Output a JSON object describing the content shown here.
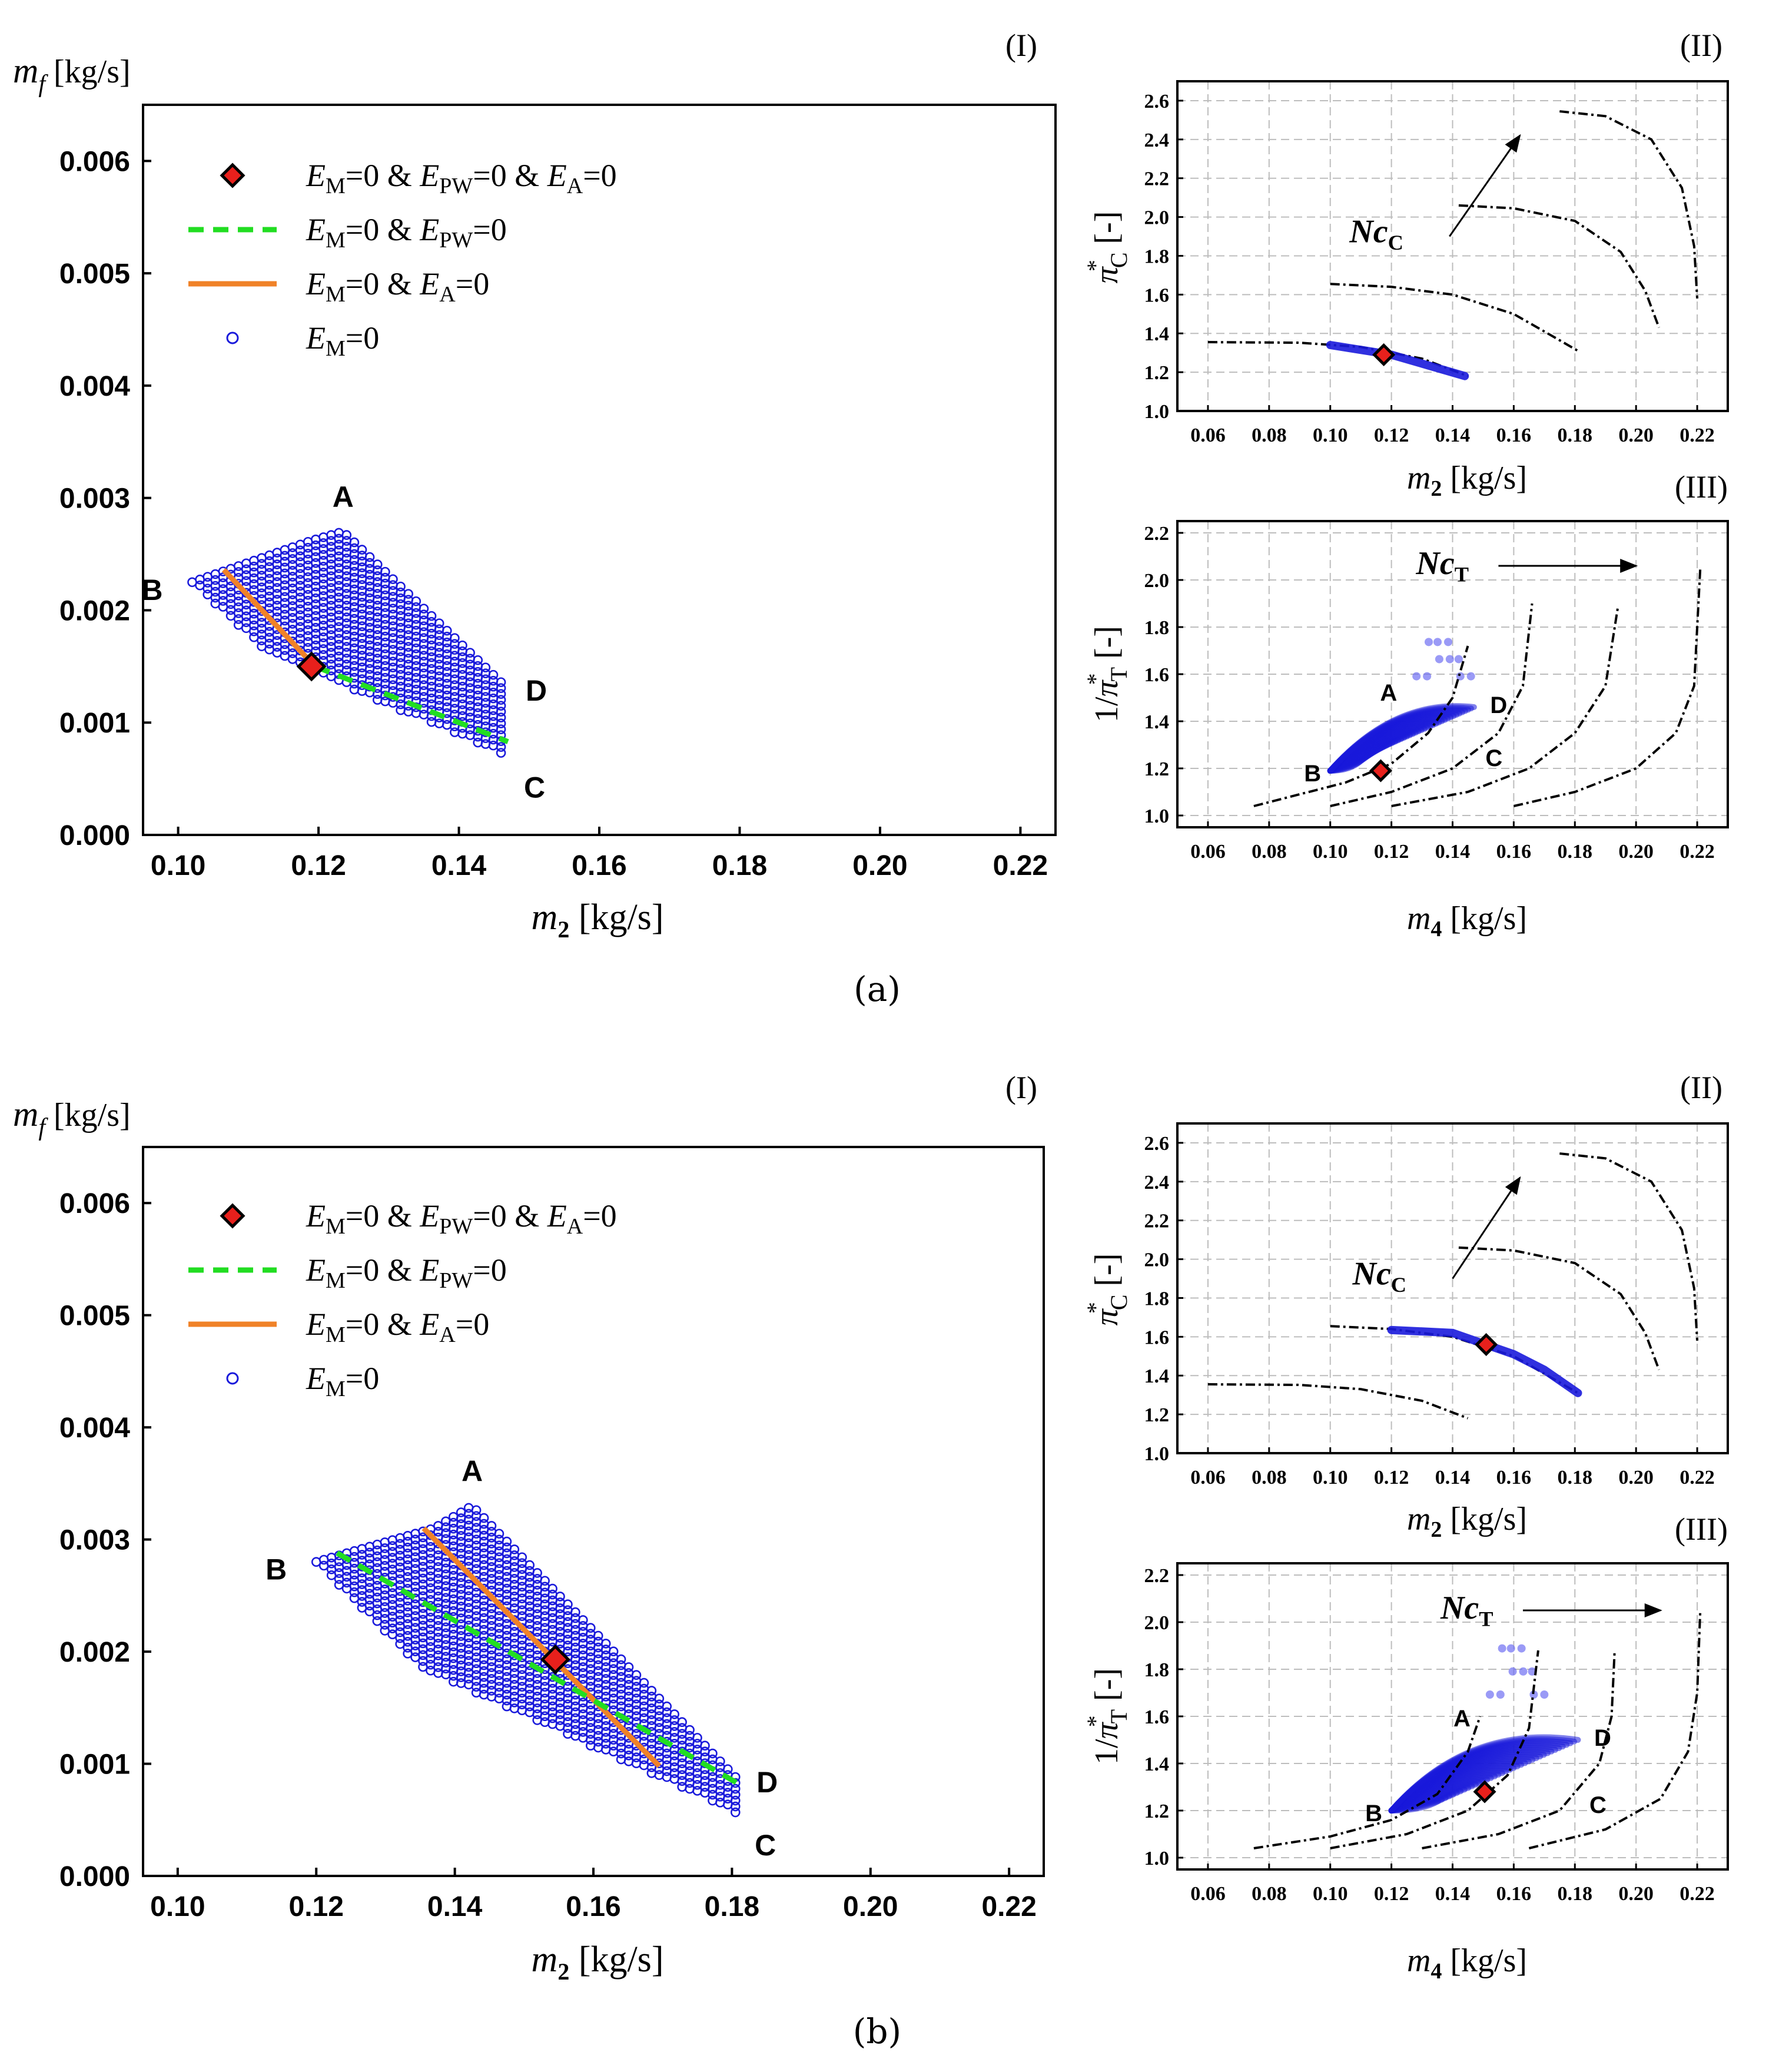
{
  "figure_labels": {
    "a": "(a)",
    "b": "(b)"
  },
  "panel_labels": {
    "I": "(I)",
    "II": "(II)",
    "III": "(III)"
  },
  "axis_labels": {
    "mf": "m_f [kg/s]",
    "m2": "m_2 [kg/s]",
    "m4": "m_4 [kg/s]",
    "piC": "π*_C [-]",
    "piT": "1/π*_T [-]"
  },
  "legend": [
    {
      "label": "E_M=0 & E_PW=0 & E_A=0",
      "marker": "diamond",
      "color": "#e8201c"
    },
    {
      "label": "E_M=0 & E_PW=0",
      "marker": "dash",
      "color": "#22dd22"
    },
    {
      "label": "E_M=0 & E_A=0",
      "marker": "line",
      "color": "#f08228"
    },
    {
      "label": "E_M=0",
      "marker": "circle",
      "color": "#1a1adb"
    }
  ],
  "annotations": {
    "NcC": "Nc_C",
    "NcT": "Nc_T"
  },
  "colors": {
    "blue": "#1a1adb",
    "green": "#22dd22",
    "orange": "#f08228",
    "red": "#e8201c",
    "light_blue": "#6f6ff2"
  },
  "chart_data": [
    {
      "id": "a-I",
      "type": "scatter",
      "title": "(I)",
      "xlabel": "m_2 [kg/s]",
      "ylabel": "m_f [kg/s]",
      "xlim": [
        0.095,
        0.225
      ],
      "ylim": [
        0,
        0.0065
      ],
      "xticks": [
        0.1,
        0.12,
        0.14,
        0.16,
        0.18,
        0.2,
        0.22
      ],
      "yticks": [
        0.0,
        0.001,
        0.002,
        0.003,
        0.004,
        0.005,
        0.006
      ],
      "region_ABCD": {
        "A": [
          0.1235,
          0.0027
        ],
        "B": [
          0.102,
          0.00225
        ],
        "C": [
          0.147,
          0.0007
        ],
        "D": [
          0.147,
          0.0013
        ],
        "A_left": [
          0.119,
          0.00262
        ]
      },
      "labels": {
        "A": "A",
        "B": "B",
        "C": "C",
        "D": "D"
      },
      "orange_line": [
        [
          0.1065,
          0.00236
        ],
        [
          0.1195,
          0.0015
        ]
      ],
      "green_line": [
        [
          0.1195,
          0.0015
        ],
        [
          0.147,
          0.00083
        ]
      ],
      "design_point": [
        0.119,
        0.0015
      ]
    },
    {
      "id": "b-I",
      "type": "scatter",
      "title": "(I)",
      "xlabel": "m_2 [kg/s]",
      "ylabel": "m_f [kg/s]",
      "xlim": [
        0.095,
        0.225
      ],
      "ylim": [
        0,
        0.0065
      ],
      "xticks": [
        0.1,
        0.12,
        0.14,
        0.16,
        0.18,
        0.2,
        0.22
      ],
      "yticks": [
        0.0,
        0.001,
        0.002,
        0.003,
        0.004,
        0.005,
        0.006
      ],
      "region_ABCD": {
        "A": [
          0.1425,
          0.0033
        ],
        "B": [
          0.12,
          0.0028
        ],
        "C": [
          0.181,
          0.00055
        ],
        "D": [
          0.181,
          0.00085
        ],
        "A_left": [
          0.137,
          0.0031
        ]
      },
      "labels": {
        "A": "A",
        "B": "B",
        "C": "C",
        "D": "D"
      },
      "orange_line": [
        [
          0.1355,
          0.0031
        ],
        [
          0.1695,
          0.00098
        ]
      ],
      "green_line": [
        [
          0.123,
          0.00288
        ],
        [
          0.181,
          0.00082
        ]
      ],
      "design_point": [
        0.1545,
        0.00193
      ]
    },
    {
      "id": "a-II",
      "type": "line",
      "title": "(II)",
      "xlabel": "m_2 [kg/s]",
      "ylabel": "π*_C [-]",
      "xlim": [
        0.05,
        0.23
      ],
      "ylim": [
        1.0,
        2.7
      ],
      "xticks": [
        0.06,
        0.08,
        0.1,
        0.12,
        0.14,
        0.16,
        0.18,
        0.2,
        0.22
      ],
      "yticks": [
        1.0,
        1.2,
        1.4,
        1.6,
        1.8,
        2.0,
        2.2,
        2.4,
        2.6
      ],
      "speed_lines": [
        [
          [
            0.06,
            1.355
          ],
          [
            0.09,
            1.352
          ],
          [
            0.11,
            1.33
          ],
          [
            0.13,
            1.27
          ],
          [
            0.145,
            1.18
          ]
        ],
        [
          [
            0.1,
            1.655
          ],
          [
            0.12,
            1.64
          ],
          [
            0.14,
            1.6
          ],
          [
            0.16,
            1.5
          ],
          [
            0.17,
            1.41
          ],
          [
            0.181,
            1.31
          ]
        ],
        [
          [
            0.142,
            2.06
          ],
          [
            0.16,
            2.045
          ],
          [
            0.18,
            1.98
          ],
          [
            0.195,
            1.82
          ],
          [
            0.203,
            1.62
          ],
          [
            0.2075,
            1.43
          ]
        ],
        [
          [
            0.175,
            2.545
          ],
          [
            0.19,
            2.52
          ],
          [
            0.205,
            2.4
          ],
          [
            0.215,
            2.15
          ],
          [
            0.219,
            1.85
          ],
          [
            0.22,
            1.58
          ]
        ]
      ],
      "operating_line": [
        [
          0.1,
          1.34
        ],
        [
          0.12,
          1.29
        ],
        [
          0.144,
          1.18
        ]
      ],
      "design_point": [
        0.1175,
        1.29
      ],
      "arrow": [
        [
          0.139,
          1.9
        ],
        [
          0.162,
          2.42
        ]
      ],
      "arrow_label": "Nc_C"
    },
    {
      "id": "a-III",
      "type": "scatter",
      "title": "(III)",
      "xlabel": "m_4 [kg/s]",
      "ylabel": "1/π*_T [-]",
      "xlim": [
        0.05,
        0.23
      ],
      "ylim": [
        0.95,
        2.25
      ],
      "xticks": [
        0.06,
        0.08,
        0.1,
        0.12,
        0.14,
        0.16,
        0.18,
        0.2,
        0.22
      ],
      "yticks": [
        1.0,
        1.2,
        1.4,
        1.6,
        1.8,
        2.0,
        2.2
      ],
      "speed_lines": [
        [
          [
            0.075,
            1.04
          ],
          [
            0.09,
            1.09
          ],
          [
            0.105,
            1.14
          ],
          [
            0.12,
            1.22
          ],
          [
            0.132,
            1.35
          ],
          [
            0.14,
            1.5
          ],
          [
            0.145,
            1.72
          ]
        ],
        [
          [
            0.1,
            1.04
          ],
          [
            0.12,
            1.1
          ],
          [
            0.14,
            1.2
          ],
          [
            0.155,
            1.35
          ],
          [
            0.163,
            1.55
          ],
          [
            0.166,
            1.9
          ]
        ],
        [
          [
            0.12,
            1.04
          ],
          [
            0.145,
            1.1
          ],
          [
            0.165,
            1.2
          ],
          [
            0.18,
            1.35
          ],
          [
            0.19,
            1.55
          ],
          [
            0.194,
            1.88
          ]
        ],
        [
          [
            0.16,
            1.04
          ],
          [
            0.18,
            1.1
          ],
          [
            0.2,
            1.2
          ],
          [
            0.213,
            1.35
          ],
          [
            0.219,
            1.55
          ],
          [
            0.221,
            2.05
          ]
        ]
      ],
      "region": {
        "A": [
          0.121,
          1.5
        ],
        "B": [
          0.1,
          1.19
        ],
        "C": [
          0.147,
          1.26
        ],
        "D": [
          0.147,
          1.46
        ],
        "top": [
          0.144,
          1.76
        ]
      },
      "labels": {
        "A": "A",
        "B": "B",
        "C": "C",
        "D": "D"
      },
      "design_point": [
        0.1165,
        1.19
      ],
      "arrow": [
        [
          0.155,
          2.06
        ],
        [
          0.2,
          2.06
        ]
      ],
      "arrow_label": "Nc_T"
    },
    {
      "id": "b-II",
      "type": "line",
      "title": "(II)",
      "xlabel": "m_2 [kg/s]",
      "ylabel": "π*_C [-]",
      "xlim": [
        0.05,
        0.23
      ],
      "ylim": [
        1.0,
        2.7
      ],
      "xticks": [
        0.06,
        0.08,
        0.1,
        0.12,
        0.14,
        0.16,
        0.18,
        0.2,
        0.22
      ],
      "yticks": [
        1.0,
        1.2,
        1.4,
        1.6,
        1.8,
        2.0,
        2.2,
        2.4,
        2.6
      ],
      "speed_lines": [
        [
          [
            0.06,
            1.355
          ],
          [
            0.09,
            1.352
          ],
          [
            0.11,
            1.33
          ],
          [
            0.13,
            1.27
          ],
          [
            0.145,
            1.18
          ]
        ],
        [
          [
            0.1,
            1.655
          ],
          [
            0.12,
            1.64
          ],
          [
            0.14,
            1.6
          ],
          [
            0.16,
            1.5
          ],
          [
            0.17,
            1.41
          ],
          [
            0.181,
            1.31
          ]
        ],
        [
          [
            0.142,
            2.06
          ],
          [
            0.16,
            2.045
          ],
          [
            0.18,
            1.98
          ],
          [
            0.195,
            1.82
          ],
          [
            0.203,
            1.62
          ],
          [
            0.2075,
            1.43
          ]
        ],
        [
          [
            0.175,
            2.545
          ],
          [
            0.19,
            2.52
          ],
          [
            0.205,
            2.4
          ],
          [
            0.215,
            2.15
          ],
          [
            0.219,
            1.85
          ],
          [
            0.22,
            1.58
          ]
        ]
      ],
      "operating_line": [
        [
          0.12,
          1.635
        ],
        [
          0.14,
          1.62
        ],
        [
          0.16,
          1.51
        ],
        [
          0.17,
          1.43
        ],
        [
          0.181,
          1.31
        ]
      ],
      "design_point": [
        0.151,
        1.56
      ],
      "arrow": [
        [
          0.14,
          1.9
        ],
        [
          0.162,
          2.42
        ]
      ],
      "arrow_label": "Nc_C"
    },
    {
      "id": "b-III",
      "type": "scatter",
      "title": "(III)",
      "xlabel": "m_4 [kg/s]",
      "ylabel": "1/π*_T [-]",
      "xlim": [
        0.05,
        0.23
      ],
      "ylim": [
        0.95,
        2.25
      ],
      "xticks": [
        0.06,
        0.08,
        0.1,
        0.12,
        0.14,
        0.16,
        0.18,
        0.2,
        0.22
      ],
      "yticks": [
        1.0,
        1.2,
        1.4,
        1.6,
        1.8,
        2.0,
        2.2
      ],
      "speed_lines": [
        [
          [
            0.075,
            1.04
          ],
          [
            0.1,
            1.09
          ],
          [
            0.12,
            1.16
          ],
          [
            0.135,
            1.27
          ],
          [
            0.145,
            1.45
          ],
          [
            0.149,
            1.6
          ]
        ],
        [
          [
            0.1,
            1.04
          ],
          [
            0.125,
            1.1
          ],
          [
            0.145,
            1.2
          ],
          [
            0.158,
            1.35
          ],
          [
            0.165,
            1.55
          ],
          [
            0.168,
            1.88
          ]
        ],
        [
          [
            0.13,
            1.04
          ],
          [
            0.155,
            1.1
          ],
          [
            0.175,
            1.2
          ],
          [
            0.188,
            1.4
          ],
          [
            0.192,
            1.6
          ],
          [
            0.193,
            1.88
          ]
        ],
        [
          [
            0.165,
            1.04
          ],
          [
            0.19,
            1.12
          ],
          [
            0.208,
            1.25
          ],
          [
            0.217,
            1.45
          ],
          [
            0.22,
            1.7
          ],
          [
            0.221,
            2.05
          ]
        ]
      ],
      "region": {
        "A": [
          0.145,
          1.57
        ],
        "B": [
          0.12,
          1.2
        ],
        "C": [
          0.181,
          1.24
        ],
        "D": [
          0.181,
          1.5
        ],
        "top": [
          0.168,
          1.92
        ]
      },
      "labels": {
        "A": "A",
        "B": "B",
        "C": "C",
        "D": "D"
      },
      "design_point": [
        0.1505,
        1.28
      ],
      "arrow": [
        [
          0.163,
          2.05
        ],
        [
          0.208,
          2.05
        ]
      ],
      "arrow_label": "Nc_T"
    }
  ]
}
